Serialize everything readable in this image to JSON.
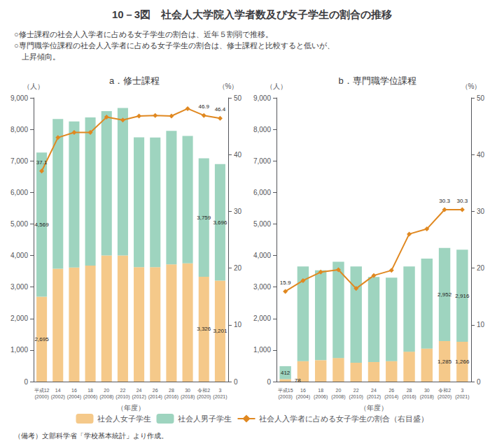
{
  "title": "10－3図　社会人大学院入学者数及び女子学生の割合の推移",
  "subtitle": [
    "○修士課程の社会人入学者に占める女子学生の割合は、近年５割弱で推移。",
    "○専門職学位課程の社会人入学者に占める女子学生の割合は、修士課程と比較すると低いが、",
    "　上昇傾向。"
  ],
  "footnote": "（備考）文部科学省「学校基本統計」より作成。",
  "legend": "bottom",
  "chart_data": [
    {
      "type": "bar",
      "title": "a．修士課程",
      "xlabel": "（年度）",
      "ylabel": "（人）",
      "y2label": "（%）",
      "stacked": true,
      "grid": false,
      "categories": [
        "平成12\n(2000)",
        "14\n(2002)",
        "16\n(2004)",
        "18\n(2006)",
        "20\n(2008)",
        "22\n(2010)",
        "24\n(2012)",
        "26\n(2014)",
        "28\n(2016)",
        "30\n(2018)",
        "令和2\n(2020)",
        "3\n(2021)"
      ],
      "ylim": [
        0,
        9000
      ],
      "yticks": [
        0,
        {
          "value": 1000,
          "label": "1,000"
        },
        {
          "value": 2000,
          "label": "2,000"
        },
        {
          "value": 3000,
          "label": "3,000"
        },
        {
          "value": 4000,
          "label": "4,000"
        },
        {
          "value": 5000,
          "label": "5,000"
        },
        {
          "value": 6000,
          "label": "6,000"
        },
        {
          "value": 7000,
          "label": "7,000"
        },
        {
          "value": 8000,
          "label": "8,000"
        },
        {
          "value": 9000,
          "label": "9,000"
        }
      ],
      "y2lim": [
        0,
        50
      ],
      "y2ticks": [
        0,
        10,
        20,
        30,
        40,
        50
      ],
      "series": [
        {
          "name": "社会人女子学生",
          "color": "#f5c98a",
          "values": [
            2695,
            3580,
            3620,
            3680,
            4000,
            4000,
            3630,
            3630,
            3720,
            3750,
            3326,
            3201
          ],
          "value_labels": [
            "2,695",
            null,
            null,
            null,
            null,
            null,
            null,
            null,
            null,
            null,
            "3,326",
            "3,201"
          ]
        },
        {
          "name": "社会人男子学生",
          "color": "#9ed4bf",
          "values": [
            4569,
            4750,
            4630,
            4700,
            4580,
            4680,
            4120,
            4110,
            4230,
            4040,
            3759,
            3696
          ],
          "value_labels": [
            "4,569",
            null,
            null,
            null,
            null,
            null,
            null,
            null,
            null,
            null,
            "3,759",
            "3,696"
          ]
        },
        {
          "name": "社会人入学者に占める女子学生の割合（右目盛）",
          "type": "line",
          "axis": "y2",
          "color": "#e08820",
          "marker": "diamond",
          "values": [
            37.1,
            43.0,
            43.9,
            43.9,
            46.6,
            46.1,
            46.8,
            46.9,
            46.8,
            48.1,
            46.9,
            46.4
          ],
          "value_labels": [
            "37.1",
            null,
            null,
            null,
            null,
            null,
            null,
            null,
            null,
            null,
            "46.9",
            "46.4"
          ]
        }
      ]
    },
    {
      "type": "bar",
      "title": "b．専門職学位課程",
      "xlabel": "（年度）",
      "ylabel": "（人）",
      "y2label": "（%）",
      "stacked": true,
      "grid": false,
      "categories": [
        "平成15\n(2003)",
        "16\n(2004)",
        "18\n(2006)",
        "20\n(2008)",
        "22\n(2010)",
        "24\n(2012)",
        "26\n(2014)",
        "28\n(2016)",
        "30\n(2018)",
        "令和2\n(2020)",
        "3\n(2021)"
      ],
      "ylim": [
        0,
        9000
      ],
      "yticks": [
        0,
        {
          "value": 1000,
          "label": "1,000"
        },
        {
          "value": 2000,
          "label": "2,000"
        },
        {
          "value": 3000,
          "label": "3,000"
        },
        {
          "value": 4000,
          "label": "4,000"
        },
        {
          "value": 5000,
          "label": "5,000"
        },
        {
          "value": 6000,
          "label": "6,000"
        },
        {
          "value": 7000,
          "label": "7,000"
        },
        {
          "value": 8000,
          "label": "8,000"
        },
        {
          "value": 9000,
          "label": "9,000"
        }
      ],
      "y2lim": [
        0,
        50
      ],
      "y2ticks": [
        0,
        10,
        20,
        30,
        40,
        50
      ],
      "series": [
        {
          "name": "社会人女子学生",
          "color": "#f5c98a",
          "values": [
            78,
            650,
            680,
            750,
            600,
            620,
            650,
            950,
            1050,
            1285,
            1266
          ],
          "value_labels": [
            "78",
            null,
            null,
            null,
            null,
            null,
            null,
            null,
            null,
            "1,285",
            "1,266"
          ]
        },
        {
          "name": "社会人男子学生",
          "color": "#9ed4bf",
          "values": [
            412,
            3000,
            2850,
            3050,
            3050,
            2700,
            2650,
            2700,
            2850,
            2952,
            2916
          ],
          "value_labels": [
            "412",
            null,
            null,
            null,
            null,
            null,
            null,
            null,
            null,
            "2,952",
            "2,916"
          ]
        },
        {
          "name": "社会人入学者に占める女子学生の割合（右目盛）",
          "type": "line",
          "axis": "y2",
          "color": "#e08820",
          "marker": "diamond",
          "values": [
            15.9,
            17.8,
            19.3,
            19.7,
            16.4,
            18.7,
            19.6,
            26.0,
            26.9,
            30.3,
            30.3
          ],
          "value_labels": [
            "15.9",
            null,
            null,
            null,
            null,
            null,
            null,
            null,
            null,
            "30.3",
            "30.3"
          ]
        }
      ]
    }
  ]
}
